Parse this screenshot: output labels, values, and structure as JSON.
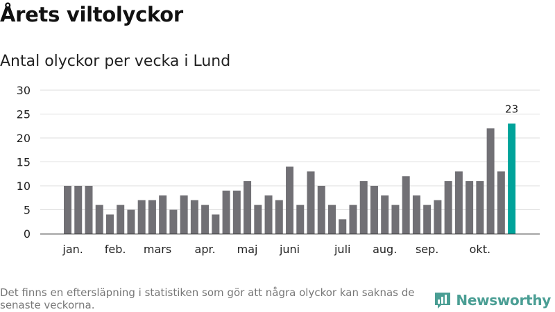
{
  "title": "Årets viltolyckor",
  "subtitle": "Antal olyckor per vecka i Lund",
  "footnote": "Det finns en eftersläpning i statistiken som gör att några olyckor kan saknas de senaste veckorna.",
  "brand": {
    "name": "Newsworthy",
    "icon": "bar-chart-logo-icon"
  },
  "colors": {
    "bar": "#717075",
    "highlight": "#00a39a",
    "grid": "#dddddd",
    "axis": "#333333",
    "text": "#222222"
  },
  "chart_data": {
    "type": "bar",
    "title": "Antal olyckor per vecka i Lund",
    "xlabel": "",
    "ylabel": "",
    "ylim": [
      0,
      30
    ],
    "yticks": [
      0,
      5,
      10,
      15,
      20,
      25,
      30
    ],
    "grid": true,
    "values": [
      10,
      10,
      10,
      6,
      4,
      6,
      5,
      7,
      7,
      8,
      5,
      8,
      7,
      6,
      4,
      9,
      9,
      11,
      6,
      8,
      7,
      14,
      6,
      13,
      10,
      6,
      3,
      6,
      11,
      10,
      8,
      6,
      12,
      8,
      6,
      7,
      11,
      13,
      11,
      11,
      22,
      13,
      23
    ],
    "highlight_last": true,
    "highlight_label": "23",
    "month_labels": [
      {
        "label": "jan.",
        "bar": 0.5
      },
      {
        "label": "feb.",
        "bar": 4.5
      },
      {
        "label": "mars",
        "bar": 8.5
      },
      {
        "label": "apr.",
        "bar": 13.0
      },
      {
        "label": "maj",
        "bar": 17.0
      },
      {
        "label": "juni",
        "bar": 21.0
      },
      {
        "label": "juli",
        "bar": 26.0
      },
      {
        "label": "aug.",
        "bar": 30.0
      },
      {
        "label": "sep.",
        "bar": 34.0
      },
      {
        "label": "okt.",
        "bar": 39.0
      }
    ]
  }
}
